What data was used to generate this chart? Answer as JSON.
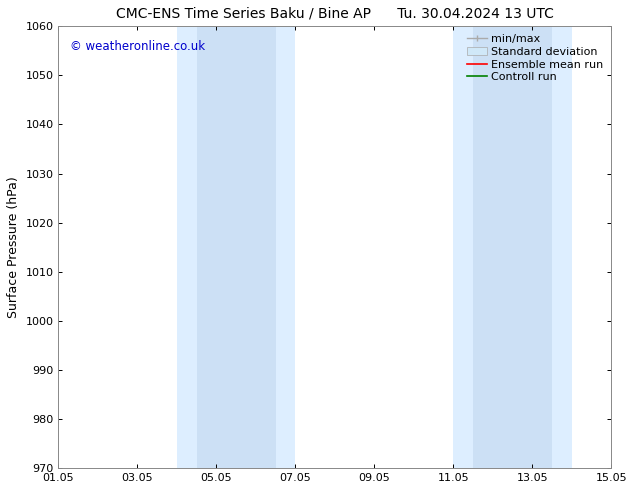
{
  "title_left": "CMC-ENS Time Series Baku / Bine AP",
  "title_right": "Tu. 30.04.2024 13 UTC",
  "ylabel": "Surface Pressure (hPa)",
  "ylim": [
    970,
    1060
  ],
  "yticks": [
    970,
    980,
    990,
    1000,
    1010,
    1020,
    1030,
    1040,
    1050,
    1060
  ],
  "xlim_start": 0,
  "xlim_end": 14,
  "xtick_labels": [
    "01.05",
    "03.05",
    "05.05",
    "07.05",
    "09.05",
    "11.05",
    "13.05",
    "15.05"
  ],
  "xtick_positions": [
    0,
    2,
    4,
    6,
    8,
    10,
    12,
    14
  ],
  "shaded_bands": [
    {
      "xmin": 3.0,
      "xmax": 3.5,
      "color": "#ddeeff"
    },
    {
      "xmin": 3.5,
      "xmax": 5.5,
      "color": "#cce0f5"
    },
    {
      "xmin": 5.5,
      "xmax": 6.0,
      "color": "#ddeeff"
    },
    {
      "xmin": 10.0,
      "xmax": 10.5,
      "color": "#ddeeff"
    },
    {
      "xmin": 10.5,
      "xmax": 12.5,
      "color": "#cce0f5"
    },
    {
      "xmin": 12.5,
      "xmax": 13.0,
      "color": "#ddeeff"
    }
  ],
  "watermark": "© weatheronline.co.uk",
  "watermark_color": "#0000cc",
  "bg_color": "#ffffff",
  "title_fontsize": 10,
  "label_fontsize": 9,
  "tick_fontsize": 8,
  "legend_fontsize": 8
}
